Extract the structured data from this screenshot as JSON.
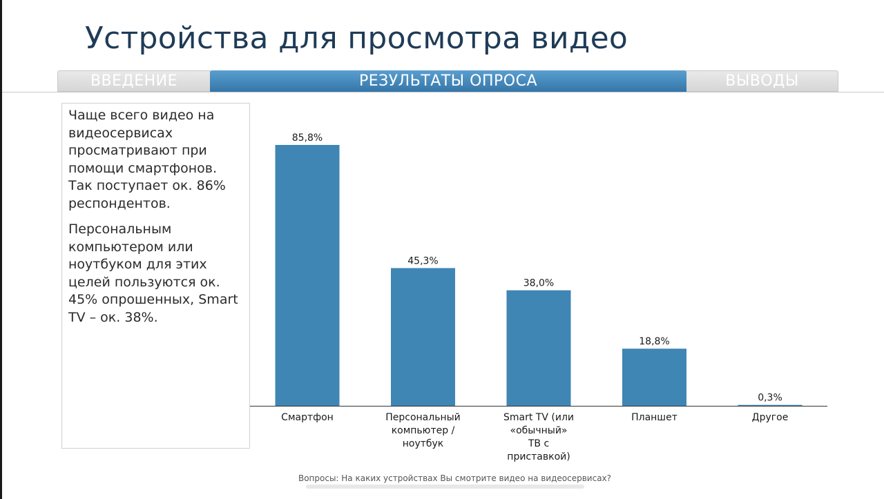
{
  "title": "Устройства для просмотра видео",
  "tabs": [
    "ВВЕДЕНИЕ",
    "РЕЗУЛЬТАТЫ ОПРОСА",
    "ВЫВОДЫ"
  ],
  "text": {
    "paragraph1": "Чаще всего видео на видеосервисах просматривают при помощи смартфонов. Так поступает ок. 86% респондентов.",
    "paragraph2": "Персональным компьютером или ноутбуком для этих целей пользуются ок. 45% опрошенных, Smart TV – ок. 38%."
  },
  "question": "Вопросы: На каких устройствах Вы смотрите видео на видеосервисах?",
  "colors": {
    "bar": "#3f86b5",
    "title": "#1f3b57",
    "tab_active": "#3f86b5",
    "tab_inactive": "#dedede"
  },
  "chart_data": {
    "type": "bar",
    "categories": [
      [
        "Смартфон"
      ],
      [
        "Персональный",
        "компьютер /",
        "ноутбук"
      ],
      [
        "Smart TV (или",
        "«обычный»",
        "ТВ с",
        "приставкой)"
      ],
      [
        "Планшет"
      ],
      [
        "Другое"
      ]
    ],
    "values": [
      85.8,
      45.3,
      38.0,
      18.8,
      0.3
    ],
    "data_labels": [
      "85,8%",
      "45,3%",
      "38,0%",
      "18,8%",
      "0,3%"
    ],
    "ylim": [
      0,
      100
    ],
    "grid": false,
    "legend": "none"
  }
}
